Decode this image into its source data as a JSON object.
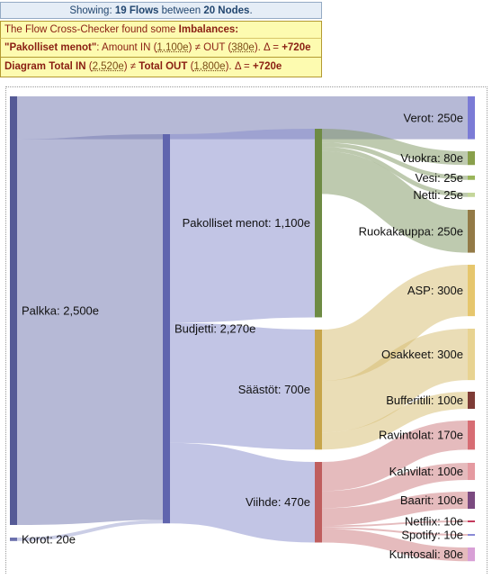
{
  "summary": {
    "prefix": "Showing: ",
    "flows_count": "19 Flows",
    "between": " between ",
    "nodes_count": "20 Nodes",
    "suffix": "."
  },
  "checker": {
    "header_prefix": "The Flow Cross-Checker found some ",
    "header_bold": "Imbalances:",
    "line1": {
      "name": "\"Pakolliset menot\"",
      "t1": ": Amount IN (",
      "in": "1,100e",
      "t2": ") ≠ OUT (",
      "out": "380e",
      "t3": "). Δ = ",
      "delta": "+720e"
    },
    "line2": {
      "b1": "Diagram Total IN",
      "t1": " (",
      "in": "2,520e",
      "t2": ") ≠ ",
      "b2": "Total OUT",
      "t3": " (",
      "out": "1,800e",
      "t4": "). Δ = ",
      "delta": "+720e"
    }
  },
  "chart_data": {
    "type": "sankey",
    "unit": "e",
    "nodes": [
      {
        "id": "palkka",
        "label": "Palkka: 2,500e",
        "value": 2500,
        "color": "#555a96"
      },
      {
        "id": "korot",
        "label": "Korot: 20e",
        "value": 20,
        "color": "#6b70ad"
      },
      {
        "id": "budjetti",
        "label": "Budjetti: 2,270e",
        "value": 2270,
        "color": "#6065ae"
      },
      {
        "id": "verot",
        "label": "Verot: 250e",
        "value": 250,
        "color": "#7b7bd6"
      },
      {
        "id": "pakolliset",
        "label": "Pakolliset menot: 1,100e",
        "value": 1100,
        "color": "#6e8b44"
      },
      {
        "id": "saastot",
        "label": "Säästöt: 700e",
        "value": 700,
        "color": "#c7a54a"
      },
      {
        "id": "viihde",
        "label": "Viihde: 470e",
        "value": 470,
        "color": "#bf5e5e"
      },
      {
        "id": "vuokra",
        "label": "Vuokra: 80e",
        "value": 80,
        "color": "#89a04b"
      },
      {
        "id": "vesi",
        "label": "Vesi: 25e",
        "value": 25,
        "color": "#9ab55a"
      },
      {
        "id": "netti",
        "label": "Netti: 25e",
        "value": 25,
        "color": "#c4d69a"
      },
      {
        "id": "ruokakauppa",
        "label": "Ruokakauppa: 250e",
        "value": 250,
        "color": "#937a46"
      },
      {
        "id": "asp",
        "label": "ASP: 300e",
        "value": 300,
        "color": "#e6c66d"
      },
      {
        "id": "osakkeet",
        "label": "Osakkeet: 300e",
        "value": 300,
        "color": "#e8d391"
      },
      {
        "id": "bufferitili",
        "label": "Bufferitili: 100e",
        "value": 100,
        "color": "#7e3b36"
      },
      {
        "id": "ravintolat",
        "label": "Ravintolat: 170e",
        "value": 170,
        "color": "#d76d74"
      },
      {
        "id": "kahvilat",
        "label": "Kahvilat: 100e",
        "value": 100,
        "color": "#e59aa1"
      },
      {
        "id": "baarit",
        "label": "Baarit: 100e",
        "value": 100,
        "color": "#7b4a80"
      },
      {
        "id": "netflix",
        "label": "Netflix: 10e",
        "value": 10,
        "color": "#c4395b"
      },
      {
        "id": "spotify",
        "label": "Spotify: 10e",
        "value": 10,
        "color": "#8a8ad6"
      },
      {
        "id": "kuntosali",
        "label": "Kuntosali: 80e",
        "value": 80,
        "color": "#d8a0d6"
      }
    ],
    "links": [
      {
        "source": "palkka",
        "target": "verot",
        "value": 250
      },
      {
        "source": "palkka",
        "target": "budjetti",
        "value": 2250
      },
      {
        "source": "korot",
        "target": "budjetti",
        "value": 20
      },
      {
        "source": "budjetti",
        "target": "pakolliset",
        "value": 1100
      },
      {
        "source": "budjetti",
        "target": "saastot",
        "value": 700
      },
      {
        "source": "budjetti",
        "target": "viihde",
        "value": 470
      },
      {
        "source": "pakolliset",
        "target": "vuokra",
        "value": 80
      },
      {
        "source": "pakolliset",
        "target": "vesi",
        "value": 25
      },
      {
        "source": "pakolliset",
        "target": "netti",
        "value": 25
      },
      {
        "source": "pakolliset",
        "target": "ruokakauppa",
        "value": 250
      },
      {
        "source": "saastot",
        "target": "asp",
        "value": 300
      },
      {
        "source": "saastot",
        "target": "osakkeet",
        "value": 300
      },
      {
        "source": "saastot",
        "target": "bufferitili",
        "value": 100
      },
      {
        "source": "viihde",
        "target": "ravintolat",
        "value": 170
      },
      {
        "source": "viihde",
        "target": "kahvilat",
        "value": 100
      },
      {
        "source": "viihde",
        "target": "baarit",
        "value": 100
      },
      {
        "source": "viihde",
        "target": "netflix",
        "value": 10
      },
      {
        "source": "viihde",
        "target": "spotify",
        "value": 10
      },
      {
        "source": "viihde",
        "target": "kuntosali",
        "value": 80
      }
    ]
  }
}
